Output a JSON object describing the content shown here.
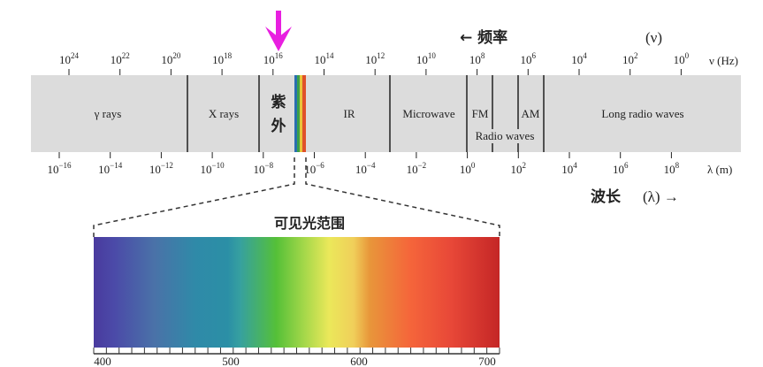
{
  "arrow_color": "#e81fe0",
  "frequency_label": "← 频率",
  "frequency_symbol": "(ν)",
  "frequency_unit": "ν (Hz)",
  "frequency_ticks": [
    "24",
    "22",
    "20",
    "18",
    "16",
    "14",
    "12",
    "10",
    "8",
    "6",
    "4",
    "2",
    "0"
  ],
  "wavelength_unit": "λ (m)",
  "wavelength_ticks": [
    "−16",
    "−14",
    "−12",
    "−10",
    "−8",
    "−6",
    "−4",
    "−2",
    "0",
    "2",
    "4",
    "6",
    "8"
  ],
  "wavelength_label": "波长",
  "wavelength_symbol": "(λ) →",
  "regions": {
    "gamma": "γ rays",
    "xray": "X rays",
    "uv_1": "紫",
    "uv_2": "外",
    "ir": "IR",
    "microwave": "Microwave",
    "fm": "FM",
    "am": "AM",
    "radio": "Radio waves",
    "long_radio": "Long radio waves"
  },
  "uv_color": "#b44ee0",
  "visible": {
    "title": "可见光范围",
    "tick_labels": [
      "400",
      "500",
      "600",
      "700"
    ]
  }
}
